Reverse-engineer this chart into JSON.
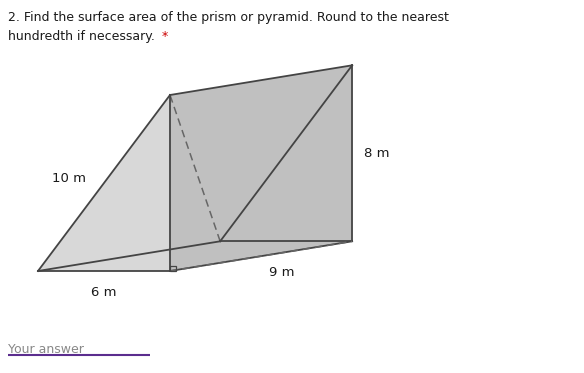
{
  "title_line1": "2. Find the surface area of the prism or pyramid. Round to the nearest",
  "title_line2": "hundredth if necessary.",
  "title_asterisk": "*",
  "label_10m": "10 m",
  "label_6m": "6 m",
  "label_8m": "8 m",
  "label_9m": "9 m",
  "your_answer_label": "Your answer",
  "bg_color": "#ffffff",
  "face_slant_color": "#d4d4d4",
  "face_rect_color": "#c0c0c0",
  "face_bottom_color": "#d4d4d4",
  "prism_stroke": "#444444",
  "dashed_color": "#666666",
  "text_color": "#1a1a1a",
  "asterisk_color": "#cc0000",
  "underline_color": "#5b2d8e",
  "your_answer_color": "#888888"
}
